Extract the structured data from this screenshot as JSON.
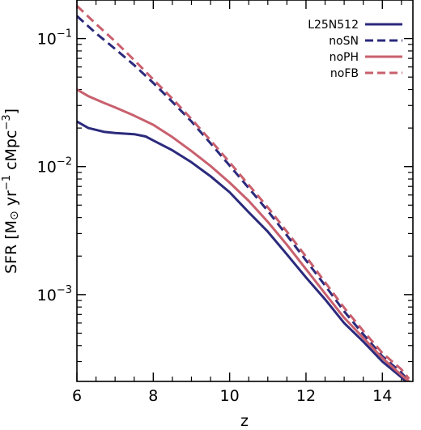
{
  "chart_data": {
    "type": "line",
    "title": "",
    "xlabel": "z",
    "ylabel": {
      "pre": "SFR [M",
      "sun": "⊙",
      "mid1": " yr",
      "exp1": "−1",
      "mid2": " cMpc",
      "exp2": "−3",
      "post": "]"
    },
    "xlim": [
      6,
      14.8
    ],
    "ylim": [
      0.00021,
      0.2
    ],
    "yscale": "log",
    "x_ticks": [
      {
        "value": 6,
        "label": "6"
      },
      {
        "value": 8,
        "label": "8"
      },
      {
        "value": 10,
        "label": "10"
      },
      {
        "value": 12,
        "label": "12"
      },
      {
        "value": 14,
        "label": "14"
      }
    ],
    "y_ticks": [
      {
        "value": 0.001,
        "base": "10",
        "exp": "−3"
      },
      {
        "value": 0.01,
        "base": "10",
        "exp": "−2"
      },
      {
        "value": 0.1,
        "base": "10",
        "exp": "−1"
      }
    ],
    "legend_position": "top-right",
    "series": [
      {
        "name": "L25N512",
        "color": "#2b2a7c",
        "dash": "solid",
        "x": [
          6.0,
          6.3,
          6.7,
          7.0,
          7.5,
          7.8,
          8.0,
          8.5,
          9.0,
          9.5,
          10.0,
          10.5,
          11.0,
          11.5,
          12.0,
          12.5,
          13.0,
          13.5,
          14.0,
          14.5,
          14.7
        ],
        "y": [
          0.0225,
          0.02,
          0.0187,
          0.0183,
          0.0179,
          0.0172,
          0.016,
          0.0134,
          0.0108,
          0.0084,
          0.0063,
          0.0044,
          0.0031,
          0.00206,
          0.00136,
          0.00092,
          0.0006,
          0.00043,
          0.0003,
          0.000226,
          0.0002
        ]
      },
      {
        "name": "noSN",
        "color": "#2b2a7c",
        "dash": "dashed",
        "x": [
          6.0,
          6.5,
          7.0,
          7.5,
          8.0,
          8.5,
          9.0,
          9.5,
          10.0,
          10.5,
          11.0,
          11.5,
          12.0,
          12.5,
          13.0,
          13.5,
          14.0,
          14.5,
          14.7
        ],
        "y": [
          0.15,
          0.11,
          0.083,
          0.062,
          0.045,
          0.032,
          0.0225,
          0.0152,
          0.0102,
          0.0068,
          0.0045,
          0.0029,
          0.00185,
          0.00118,
          0.00074,
          0.00049,
          0.00033,
          0.000245,
          0.00021
        ]
      },
      {
        "name": "noPH",
        "color": "#c9606e",
        "dash": "solid",
        "x": [
          6.0,
          6.3,
          6.7,
          7.0,
          7.5,
          8.0,
          8.5,
          9.0,
          9.5,
          10.0,
          10.5,
          11.0,
          11.5,
          12.0,
          12.5,
          13.0,
          13.5,
          14.0,
          14.5,
          14.7
        ],
        "y": [
          0.04,
          0.0355,
          0.0315,
          0.029,
          0.025,
          0.0212,
          0.017,
          0.0132,
          0.0101,
          0.0075,
          0.0054,
          0.0037,
          0.00245,
          0.00158,
          0.00102,
          0.00066,
          0.00046,
          0.00032,
          0.000235,
          0.00021
        ]
      },
      {
        "name": "noFB",
        "color": "#c9606e",
        "dash": "dashed",
        "x": [
          6.0,
          6.5,
          7.0,
          7.5,
          8.0,
          8.5,
          9.0,
          9.5,
          10.0,
          10.5,
          11.0,
          11.5,
          12.0,
          12.5,
          13.0,
          13.5,
          14.0,
          14.5,
          14.7
        ],
        "y": [
          0.18,
          0.13,
          0.095,
          0.068,
          0.048,
          0.034,
          0.0235,
          0.016,
          0.0108,
          0.0072,
          0.0048,
          0.0031,
          0.00198,
          0.00125,
          0.00079,
          0.00052,
          0.00035,
          0.00026,
          0.00022
        ]
      }
    ]
  }
}
